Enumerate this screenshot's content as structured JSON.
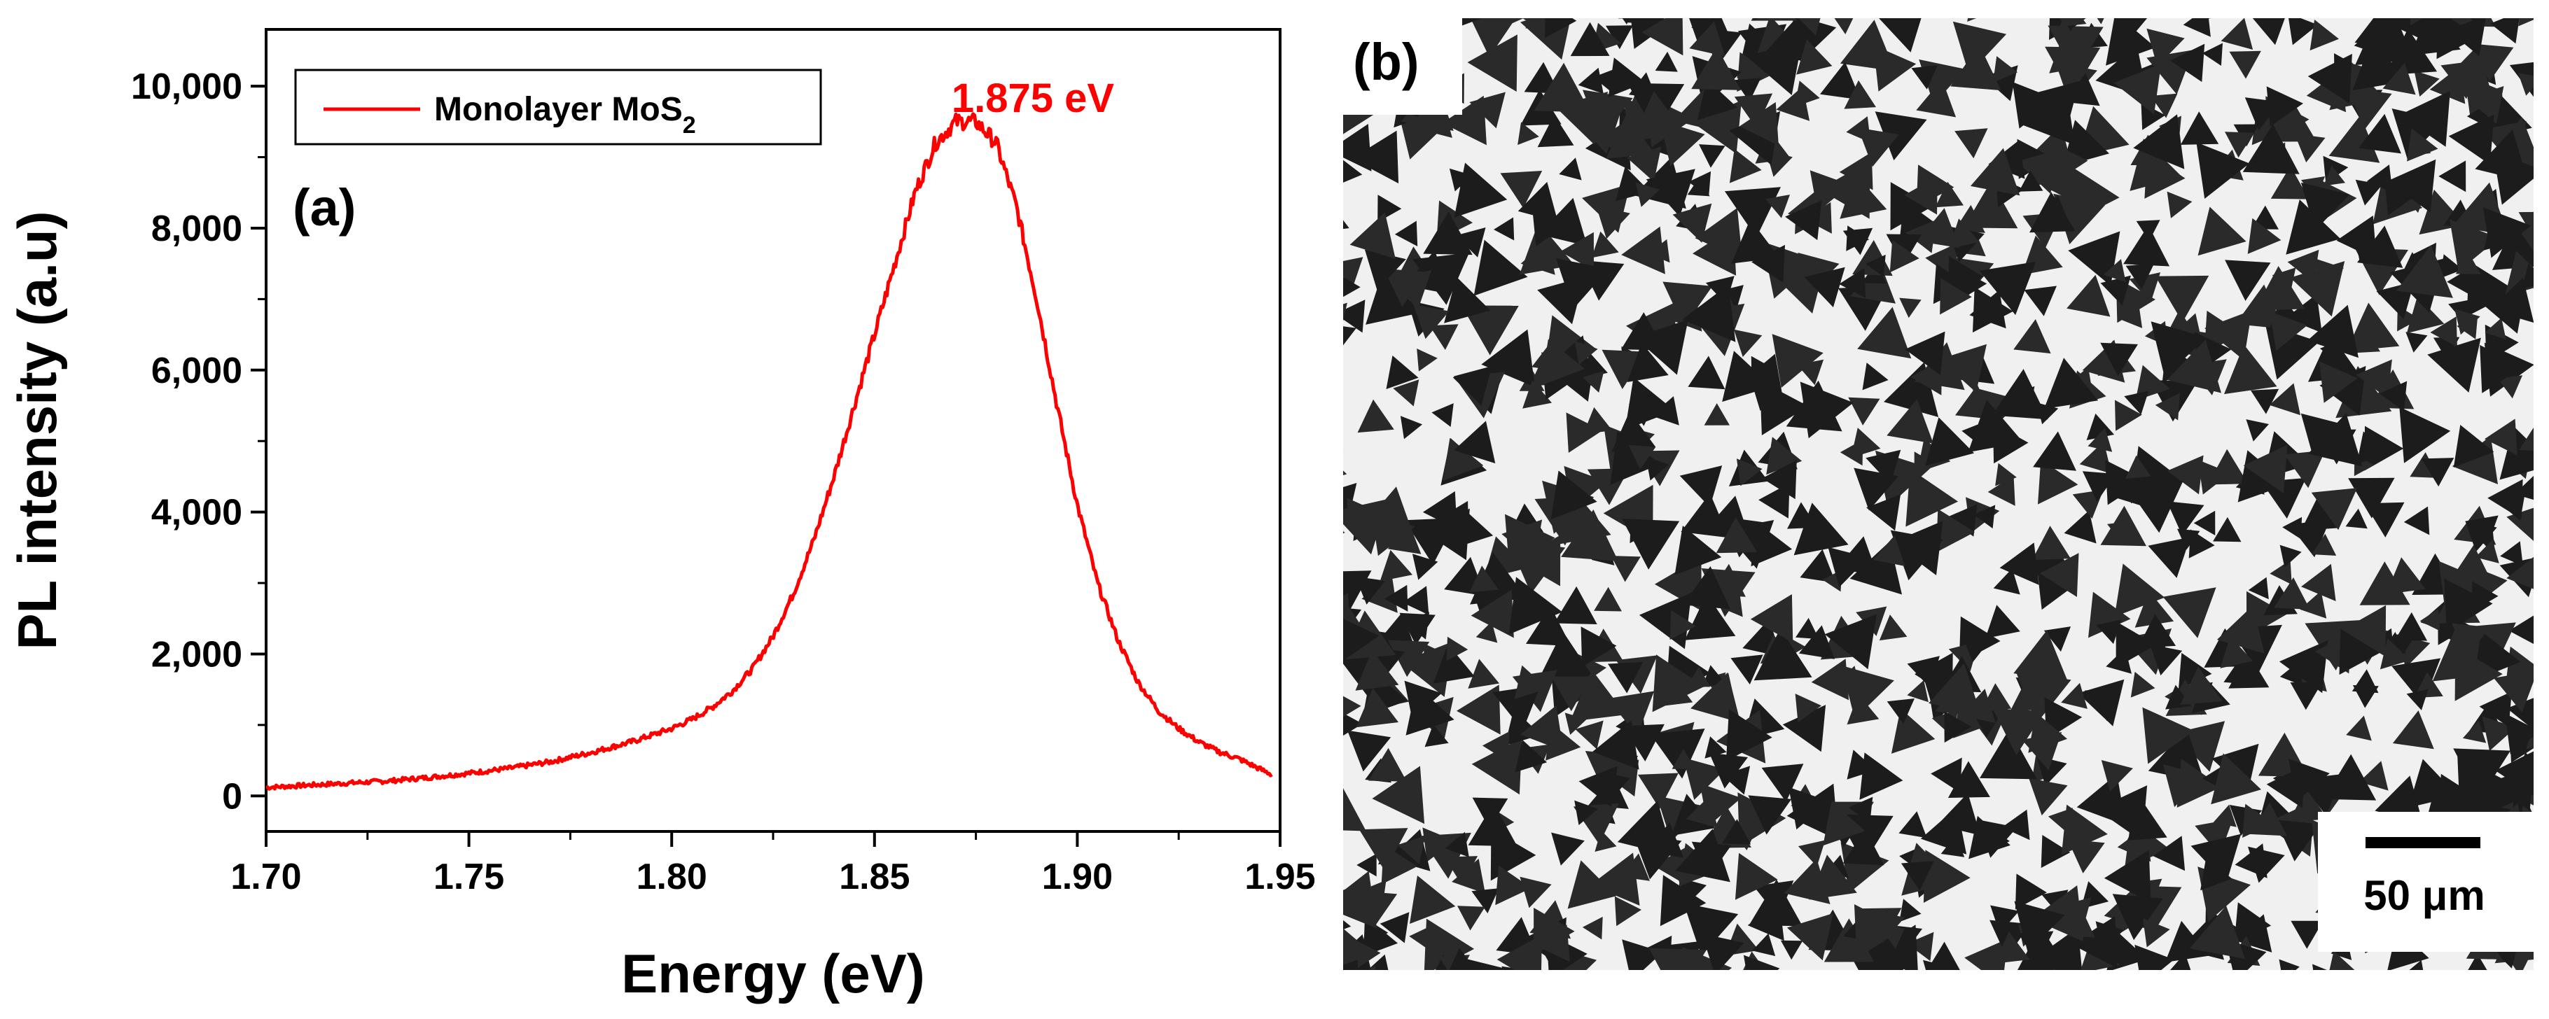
{
  "colors": {
    "series": "#ff0000",
    "axis": "#000000",
    "background": "#ffffff",
    "micrograph_bg": "#f0f0f0",
    "flake": "#1c1c1c"
  },
  "panel_a": {
    "label": "(a)"
  },
  "panel_b": {
    "label": "(b)",
    "scale_bar_label": "50 μm",
    "image_description_icon": "optical-micrograph-mos2-flakes"
  },
  "chart_data": {
    "type": "line",
    "title": "",
    "xlabel": "Energy (eV)",
    "ylabel": "PL intensity (a.u)",
    "xlim": [
      1.7,
      1.95
    ],
    "ylim": [
      -500,
      10800
    ],
    "xticks": [
      1.7,
      1.75,
      1.8,
      1.85,
      1.9,
      1.95
    ],
    "xtick_labels": [
      "1.70",
      "1.75",
      "1.80",
      "1.85",
      "1.90",
      "1.95"
    ],
    "yticks": [
      0,
      2000,
      4000,
      6000,
      8000,
      10000
    ],
    "ytick_labels": [
      "0",
      "2,000",
      "4,000",
      "6,000",
      "8,000",
      "10,000"
    ],
    "legend": {
      "entries": [
        "Monolayer MoS",
        "2"
      ],
      "position": "top-left"
    },
    "annotations": [
      {
        "text": "1.875 eV",
        "x": 1.875,
        "y": 9500
      }
    ],
    "series": [
      {
        "name": "Monolayer MoS2",
        "x": [
          1.7,
          1.71,
          1.72,
          1.73,
          1.74,
          1.75,
          1.76,
          1.77,
          1.78,
          1.79,
          1.8,
          1.805,
          1.81,
          1.815,
          1.82,
          1.825,
          1.83,
          1.835,
          1.84,
          1.845,
          1.85,
          1.855,
          1.86,
          1.865,
          1.87,
          1.875,
          1.88,
          1.885,
          1.89,
          1.895,
          1.9,
          1.905,
          1.91,
          1.915,
          1.92,
          1.925,
          1.93,
          1.935,
          1.94,
          1.945,
          1.948
        ],
        "y": [
          120,
          150,
          180,
          210,
          260,
          320,
          390,
          480,
          610,
          760,
          950,
          1080,
          1250,
          1480,
          1800,
          2250,
          2850,
          3600,
          4500,
          5500,
          6500,
          7500,
          8500,
          9200,
          9500,
          9500,
          9200,
          8300,
          7000,
          5500,
          4100,
          3000,
          2200,
          1600,
          1200,
          950,
          760,
          620,
          520,
          380,
          300
        ]
      }
    ]
  }
}
